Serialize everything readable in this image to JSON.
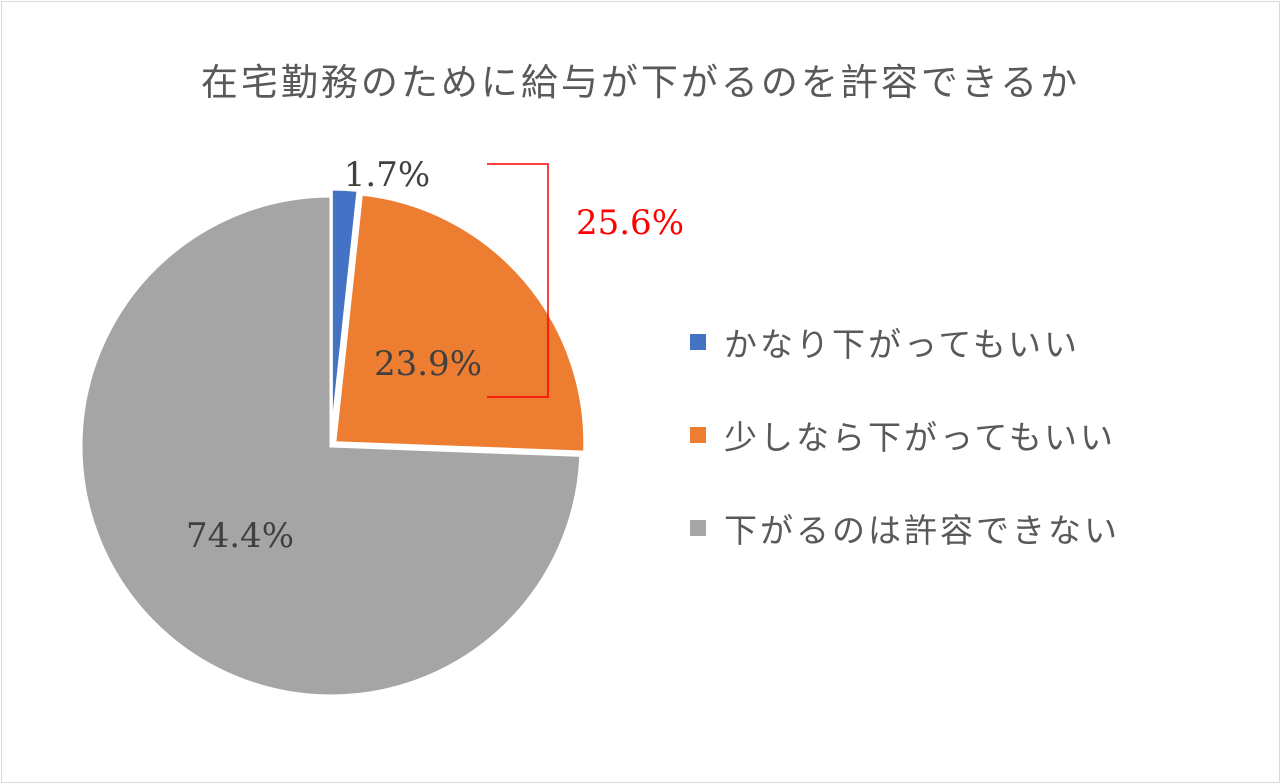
{
  "chart_data": {
    "type": "pie",
    "title": "在宅勤務のために給与が下がるのを許容できるか",
    "slices": [
      {
        "label": "かなり下がってもいい",
        "value": 1.7,
        "display": "1.7%",
        "color": "#4472c4"
      },
      {
        "label": "少しなら下がってもいい",
        "value": 23.9,
        "display": "23.9%",
        "color": "#ed7d31"
      },
      {
        "label": "下がるのは許容できない",
        "value": 74.4,
        "display": "74.4%",
        "color": "#a5a5a5"
      }
    ],
    "annotation": {
      "text": "25.6%",
      "color": "#ff0000"
    },
    "legend_position": "right",
    "start_angle": "12 o'clock, clockwise"
  }
}
